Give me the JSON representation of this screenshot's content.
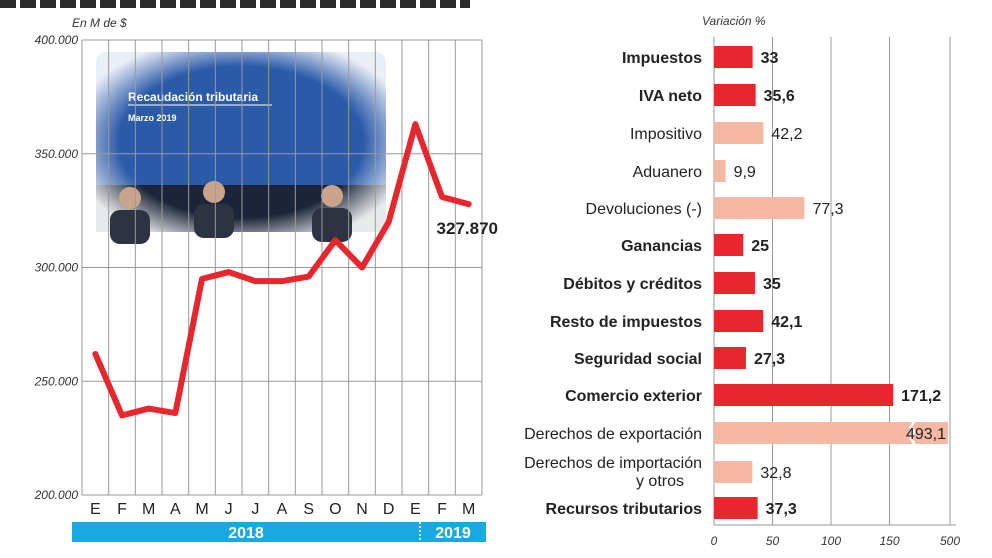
{
  "chart_data": [
    {
      "type": "line",
      "ylabel": "En M de $",
      "ylim": [
        200000,
        400000
      ],
      "yticks": [
        200000,
        250000,
        300000,
        350000,
        400000
      ],
      "ytick_labels": [
        "200.000",
        "250.000",
        "300.000",
        "350.000",
        "400.000"
      ],
      "categories": [
        "E",
        "F",
        "M",
        "A",
        "M",
        "J",
        "J",
        "A",
        "S",
        "O",
        "N",
        "D",
        "E",
        "F",
        "M"
      ],
      "year_groups": [
        {
          "label": "2018",
          "count": 12
        },
        {
          "label": "2019",
          "count": 3
        }
      ],
      "series": [
        {
          "values": [
            262000,
            235000,
            238000,
            236000,
            295000,
            298000,
            294000,
            294000,
            296000,
            312000,
            300000,
            320000,
            363000,
            331000,
            327870
          ],
          "color": "#e8262d"
        }
      ],
      "annotation": "327.870",
      "grid": true
    },
    {
      "type": "bar",
      "orientation": "horizontal",
      "xlabel": "Variación %",
      "xlim": [
        0,
        500
      ],
      "xticks": [
        0,
        50,
        100,
        150,
        500
      ],
      "xtick_labels": [
        "0",
        "50",
        "100",
        "150",
        "500"
      ],
      "axis_break": true,
      "categories": [
        "Impuestos",
        "IVA neto",
        "Impositivo",
        "Aduanero",
        "Devoluciones (-)",
        "Ganancias",
        "Débitos y créditos",
        "Resto de impuestos",
        "Seguridad social",
        "Comercio exterior",
        "Derechos de exportación",
        "Derechos de importación\ny otros",
        "Recursos tributarios"
      ],
      "values": [
        33,
        35.6,
        42.2,
        9.9,
        77.3,
        25,
        35,
        42.1,
        27.3,
        171.2,
        493.1,
        32.8,
        37.3
      ],
      "value_labels": [
        "33",
        "35,6",
        "42,2",
        "9,9",
        "77,3",
        "25",
        "35",
        "42,1",
        "27,3",
        "171,2",
        "493,1",
        "32,8",
        "37,3"
      ],
      "primary": [
        true,
        true,
        false,
        false,
        false,
        true,
        true,
        true,
        true,
        true,
        false,
        false,
        true
      ],
      "colors": {
        "primary": "#e8262d",
        "secondary": "#f7b8a3"
      },
      "grid": true
    }
  ],
  "photo": {
    "title": "Recaudación tributaria",
    "subtitle": "Marzo 2019"
  }
}
